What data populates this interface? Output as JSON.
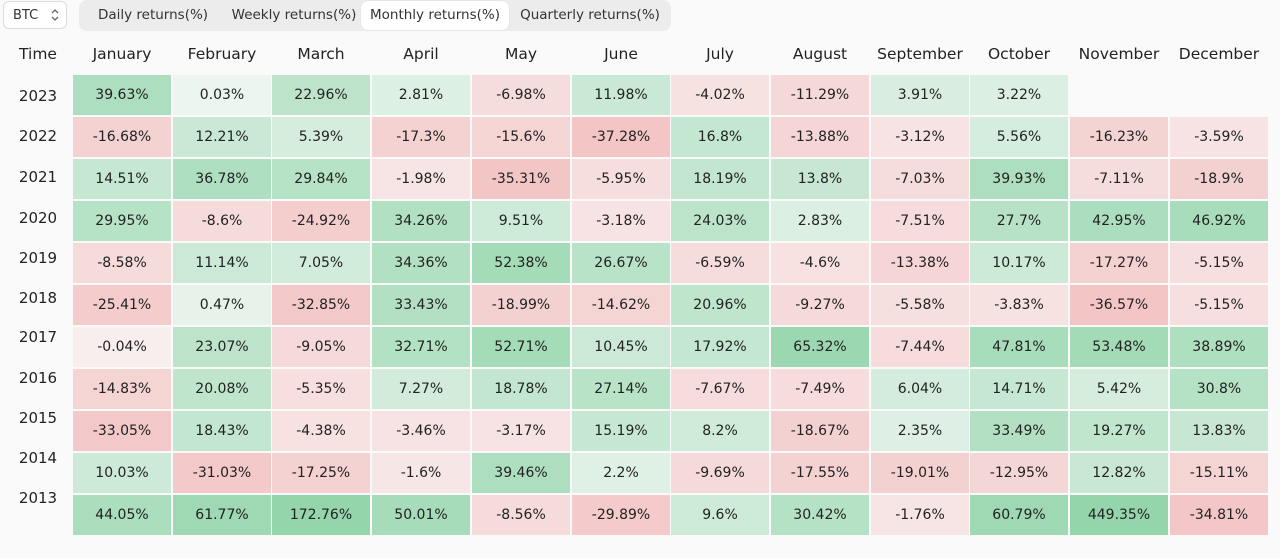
{
  "asset_select": {
    "value": "BTC"
  },
  "tabs": [
    {
      "label": "Daily returns(%)",
      "active": false
    },
    {
      "label": "Weekly returns(%)",
      "active": false
    },
    {
      "label": "Monthly returns(%)",
      "active": true
    },
    {
      "label": "Quarterly returns(%)",
      "active": false
    }
  ],
  "table": {
    "time_header": "Time",
    "months": [
      "January",
      "February",
      "March",
      "April",
      "May",
      "June",
      "July",
      "August",
      "September",
      "October",
      "November",
      "December"
    ],
    "rows": [
      {
        "year": "2023",
        "values": [
          "39.63%",
          "0.03%",
          "22.96%",
          "2.81%",
          "-6.98%",
          "11.98%",
          "-4.02%",
          "-11.29%",
          "3.91%",
          "3.22%",
          "",
          ""
        ]
      },
      {
        "year": "2022",
        "values": [
          "-16.68%",
          "12.21%",
          "5.39%",
          "-17.3%",
          "-15.6%",
          "-37.28%",
          "16.8%",
          "-13.88%",
          "-3.12%",
          "5.56%",
          "-16.23%",
          "-3.59%"
        ]
      },
      {
        "year": "2021",
        "values": [
          "14.51%",
          "36.78%",
          "29.84%",
          "-1.98%",
          "-35.31%",
          "-5.95%",
          "18.19%",
          "13.8%",
          "-7.03%",
          "39.93%",
          "-7.11%",
          "-18.9%"
        ]
      },
      {
        "year": "2020",
        "values": [
          "29.95%",
          "-8.6%",
          "-24.92%",
          "34.26%",
          "9.51%",
          "-3.18%",
          "24.03%",
          "2.83%",
          "-7.51%",
          "27.7%",
          "42.95%",
          "46.92%"
        ]
      },
      {
        "year": "2019",
        "values": [
          "-8.58%",
          "11.14%",
          "7.05%",
          "34.36%",
          "52.38%",
          "26.67%",
          "-6.59%",
          "-4.6%",
          "-13.38%",
          "10.17%",
          "-17.27%",
          "-5.15%"
        ]
      },
      {
        "year": "2018",
        "values": [
          "-25.41%",
          "0.47%",
          "-32.85%",
          "33.43%",
          "-18.99%",
          "-14.62%",
          "20.96%",
          "-9.27%",
          "-5.58%",
          "-3.83%",
          "-36.57%",
          "-5.15%"
        ]
      },
      {
        "year": "2017",
        "values": [
          "-0.04%",
          "23.07%",
          "-9.05%",
          "32.71%",
          "52.71%",
          "10.45%",
          "17.92%",
          "65.32%",
          "-7.44%",
          "47.81%",
          "53.48%",
          "38.89%"
        ]
      },
      {
        "year": "2016",
        "values": [
          "-14.83%",
          "20.08%",
          "-5.35%",
          "7.27%",
          "18.78%",
          "27.14%",
          "-7.67%",
          "-7.49%",
          "6.04%",
          "14.71%",
          "5.42%",
          "30.8%"
        ]
      },
      {
        "year": "2015",
        "values": [
          "-33.05%",
          "18.43%",
          "-4.38%",
          "-3.46%",
          "-3.17%",
          "15.19%",
          "8.2%",
          "-18.67%",
          "2.35%",
          "33.49%",
          "19.27%",
          "13.83%"
        ]
      },
      {
        "year": "2014",
        "values": [
          "10.03%",
          "-31.03%",
          "-17.25%",
          "-1.6%",
          "39.46%",
          "2.2%",
          "-9.69%",
          "-17.55%",
          "-19.01%",
          "-12.95%",
          "12.82%",
          "-15.11%"
        ]
      },
      {
        "year": "2013",
        "values": [
          "44.05%",
          "61.77%",
          "172.76%",
          "50.01%",
          "-8.56%",
          "-29.89%",
          "9.6%",
          "30.42%",
          "-1.76%",
          "60.79%",
          "449.35%",
          "-34.81%"
        ]
      }
    ]
  },
  "colors": {
    "positive": "#5fc383",
    "negative": "#e98c8c"
  }
}
